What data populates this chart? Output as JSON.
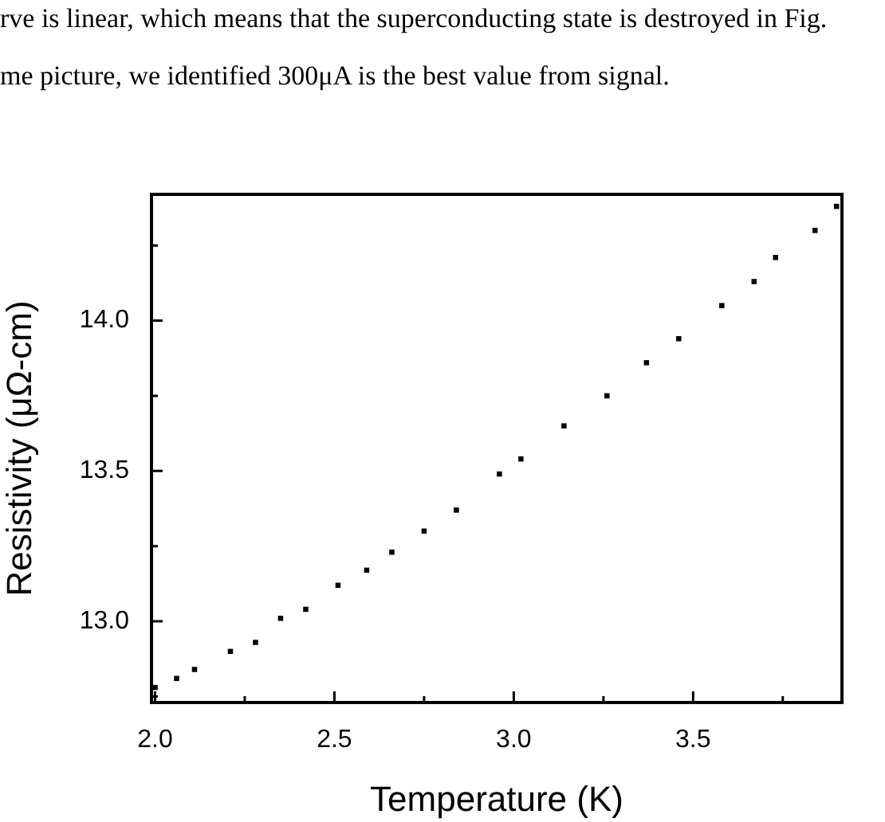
{
  "chart_data": {
    "type": "scatter",
    "annotations": [
      "rve is linear, which means that the superconducting state is destroyed in Fig.",
      "me picture, we identified 300μA is the best value from signal."
    ],
    "xlabel": "Temperature (K)",
    "ylabel": "Resistivity (μΩ-cm)",
    "x": [
      2.0,
      2.06,
      2.11,
      2.21,
      2.28,
      2.35,
      2.42,
      2.51,
      2.59,
      2.66,
      2.75,
      2.84,
      2.96,
      3.02,
      3.14,
      3.26,
      3.37,
      3.46,
      3.58,
      3.67,
      3.73,
      3.84,
      3.9
    ],
    "values": [
      12.78,
      12.81,
      12.84,
      12.9,
      12.93,
      13.01,
      13.04,
      13.12,
      13.17,
      13.23,
      13.3,
      13.37,
      13.49,
      13.54,
      13.65,
      13.75,
      13.86,
      13.94,
      14.05,
      14.13,
      14.21,
      14.3,
      14.38
    ],
    "color": "#000000",
    "marker": "square",
    "xlim": [
      1.99,
      3.915
    ],
    "ylim": [
      12.73,
      14.42
    ],
    "xticks": [
      {
        "value": 2,
        "label": "2.0"
      },
      2.5,
      {
        "value": 3,
        "label": "3.0"
      },
      3.5
    ],
    "yticks": [
      {
        "value": 13,
        "label": "13.0"
      },
      13.5,
      {
        "value": 14,
        "label": "14.0"
      }
    ]
  }
}
